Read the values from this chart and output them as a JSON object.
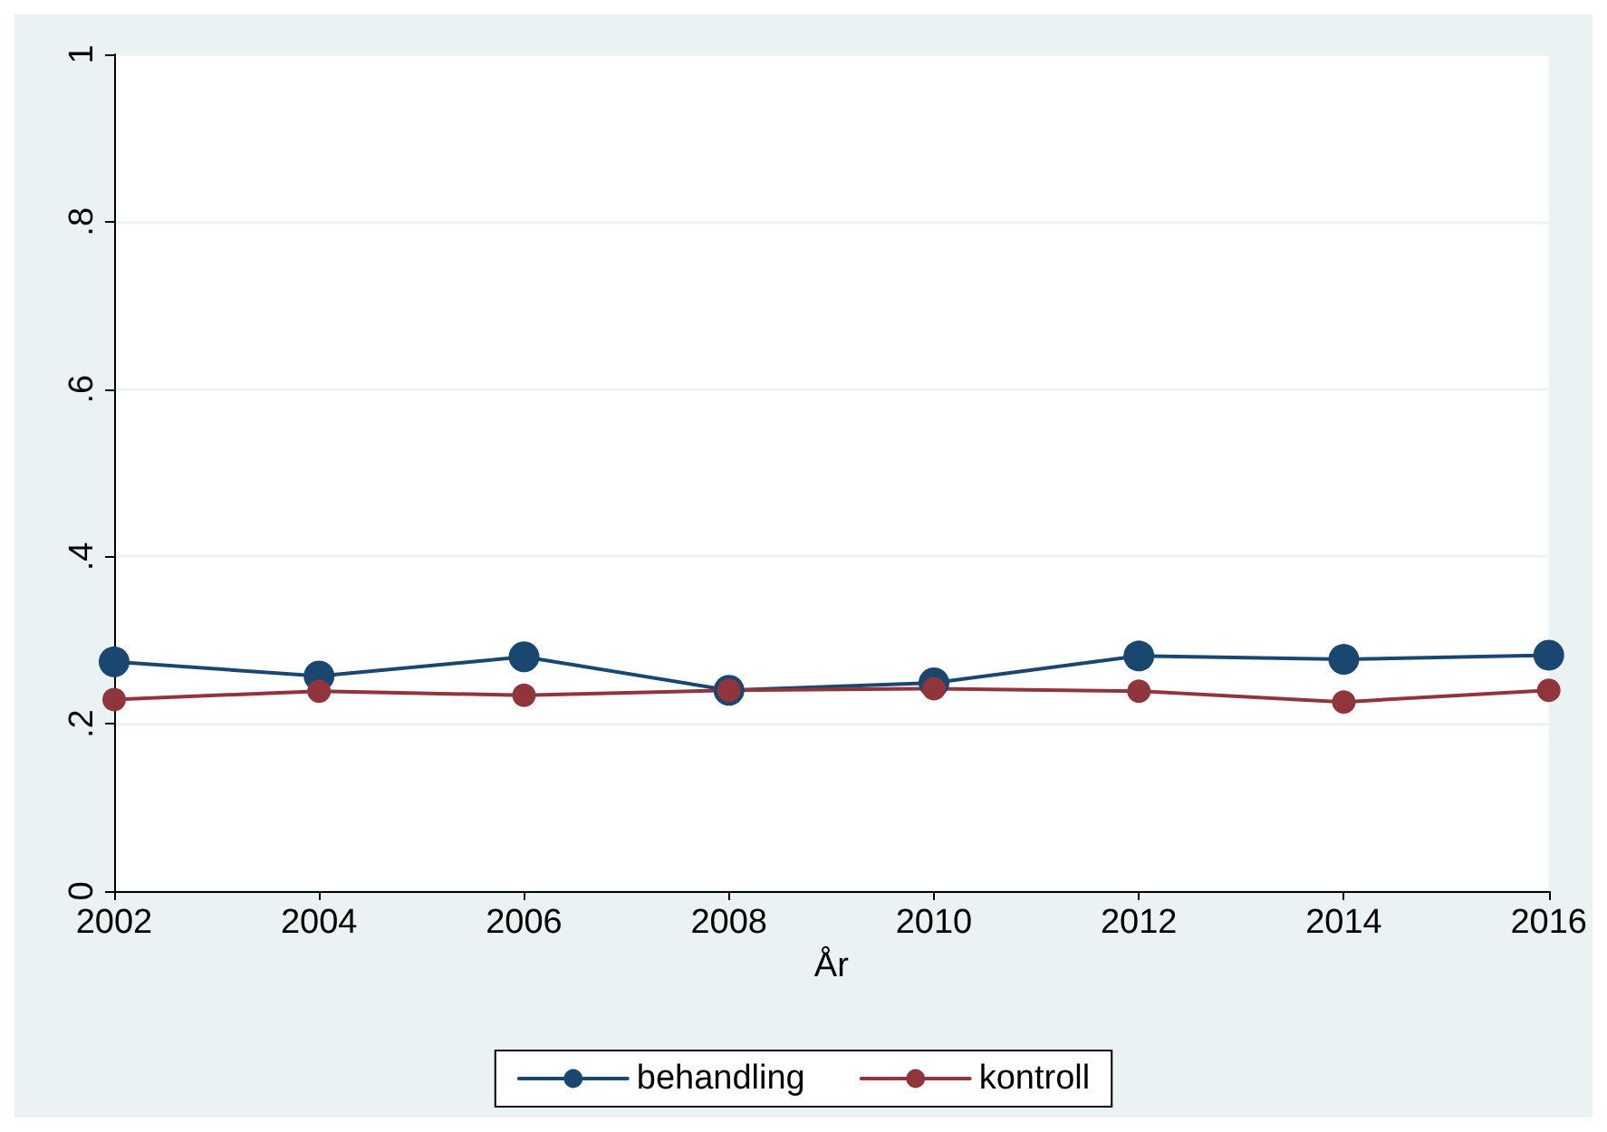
{
  "chart_data": {
    "type": "line",
    "xlabel": "År",
    "x": [
      2002,
      2004,
      2006,
      2008,
      2010,
      2012,
      2014,
      2016
    ],
    "series": [
      {
        "name": "behandling",
        "color": "#1a476f",
        "values": [
          0.274,
          0.257,
          0.28,
          0.24,
          0.249,
          0.281,
          0.277,
          0.282
        ]
      },
      {
        "name": "kontroll",
        "color": "#90353b",
        "values": [
          0.229,
          0.239,
          0.234,
          0.24,
          0.242,
          0.239,
          0.226,
          0.24
        ]
      }
    ],
    "xlim": [
      2002,
      2016
    ],
    "xticks": [
      2002,
      2004,
      2006,
      2008,
      2010,
      2012,
      2014,
      2016
    ],
    "ylim": [
      0,
      1
    ],
    "yticks": [
      {
        "value": 0,
        "label": "0"
      },
      {
        "value": 0.2,
        "label": ".2"
      },
      {
        "value": 0.4,
        "label": ".4"
      },
      {
        "value": 0.6,
        "label": ".6"
      },
      {
        "value": 0.8,
        "label": ".8"
      },
      {
        "value": 1,
        "label": "1"
      }
    ],
    "grid": "y",
    "legend": "bottom",
    "marker": "circle",
    "line_style": "solid"
  }
}
